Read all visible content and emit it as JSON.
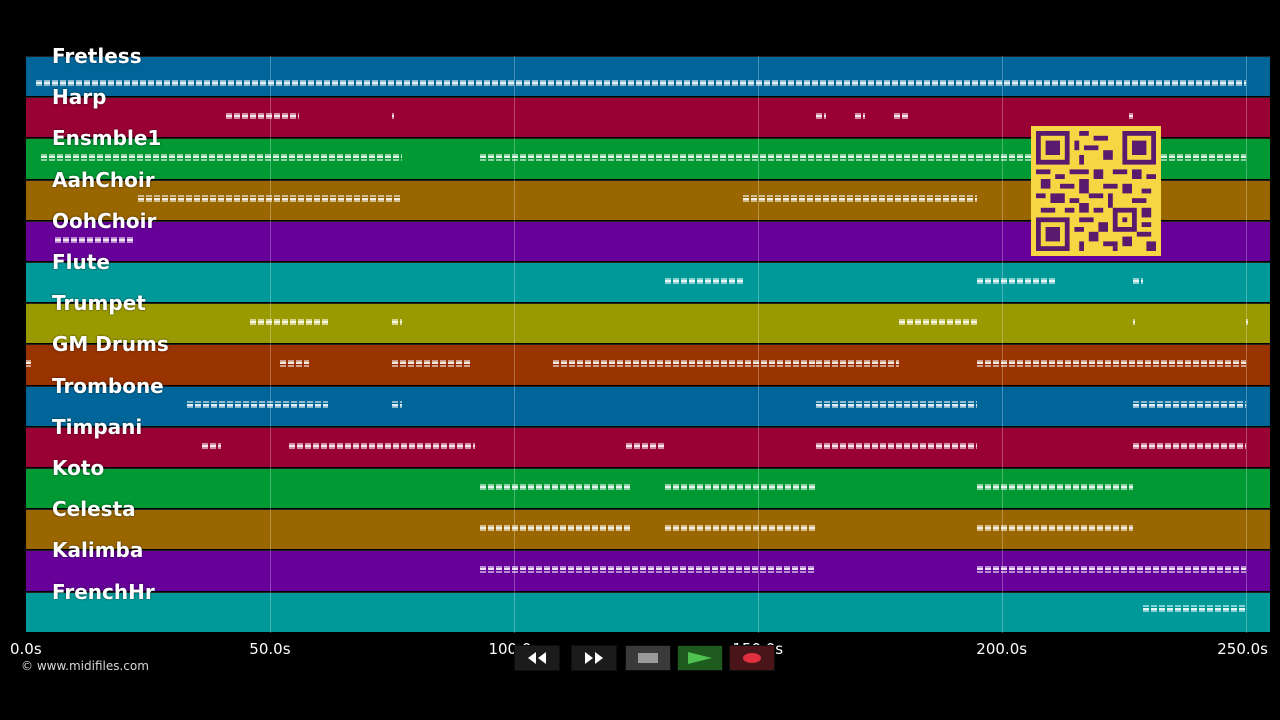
{
  "tracks": [
    {
      "name": "Fretless",
      "color": "#006699"
    },
    {
      "name": "Harp",
      "color": "#990033"
    },
    {
      "name": "Ensmble1",
      "color": "#009933"
    },
    {
      "name": "AahChoir",
      "color": "#996600"
    },
    {
      "name": "OohChoir",
      "color": "#660099"
    },
    {
      "name": "Flute",
      "color": "#009999"
    },
    {
      "name": "Trumpet",
      "color": "#999900"
    },
    {
      "name": "GM Drums",
      "color": "#993300"
    },
    {
      "name": "Trombone",
      "color": "#006699"
    },
    {
      "name": "Timpani",
      "color": "#990033"
    },
    {
      "name": "Koto",
      "color": "#009933"
    },
    {
      "name": "Celesta",
      "color": "#996600"
    },
    {
      "name": "Kalimba",
      "color": "#660099"
    },
    {
      "name": "FrenchHr",
      "color": "#009999"
    }
  ],
  "timeline": {
    "ticks": [
      "0.0s",
      "50.0s",
      "100.0s",
      "150.0s",
      "200.0s",
      "250.0s"
    ],
    "tick_values": [
      0,
      50,
      100,
      150,
      200,
      250
    ],
    "end": 255
  },
  "copyright": "© www.midifiles.com",
  "controls": [
    {
      "name": "rewind",
      "icon": "rewind-icon"
    },
    {
      "name": "fast-forward",
      "icon": "fast-forward-icon"
    },
    {
      "name": "stop",
      "icon": "stop-icon"
    },
    {
      "name": "play",
      "icon": "play-icon",
      "color": "#2e9a2e"
    },
    {
      "name": "record",
      "icon": "record-icon",
      "color": "#cc2233"
    }
  ],
  "note_segments": [
    [
      [
        2,
        250
      ]
    ],
    [
      [
        41,
        56
      ],
      [
        75,
        75
      ],
      [
        162,
        164
      ],
      [
        170,
        172
      ],
      [
        178,
        181
      ],
      [
        226,
        227
      ]
    ],
    [
      [
        3,
        77
      ],
      [
        93,
        195
      ],
      [
        195,
        250
      ]
    ],
    [
      [
        23,
        77
      ],
      [
        147,
        195
      ]
    ],
    [
      [
        6,
        22
      ]
    ],
    [
      [
        131,
        147
      ],
      [
        195,
        211
      ],
      [
        227,
        229
      ]
    ],
    [
      [
        46,
        62
      ],
      [
        75,
        77
      ],
      [
        179,
        195
      ],
      [
        227,
        227
      ],
      [
        250,
        250
      ]
    ],
    [
      [
        0,
        1
      ],
      [
        52,
        58
      ],
      [
        75,
        91
      ],
      [
        108,
        162
      ],
      [
        162,
        179
      ],
      [
        195,
        250
      ]
    ],
    [
      [
        33,
        62
      ],
      [
        75,
        77
      ],
      [
        162,
        195
      ],
      [
        227,
        250
      ]
    ],
    [
      [
        36,
        40
      ],
      [
        54,
        92
      ],
      [
        123,
        131
      ],
      [
        162,
        195
      ],
      [
        227,
        250
      ]
    ],
    [
      [
        93,
        124
      ],
      [
        131,
        162
      ],
      [
        195,
        227
      ]
    ],
    [
      [
        93,
        124
      ],
      [
        131,
        162
      ],
      [
        195,
        227
      ]
    ],
    [
      [
        93,
        162
      ],
      [
        195,
        250
      ]
    ],
    [
      [
        229,
        250
      ]
    ]
  ]
}
